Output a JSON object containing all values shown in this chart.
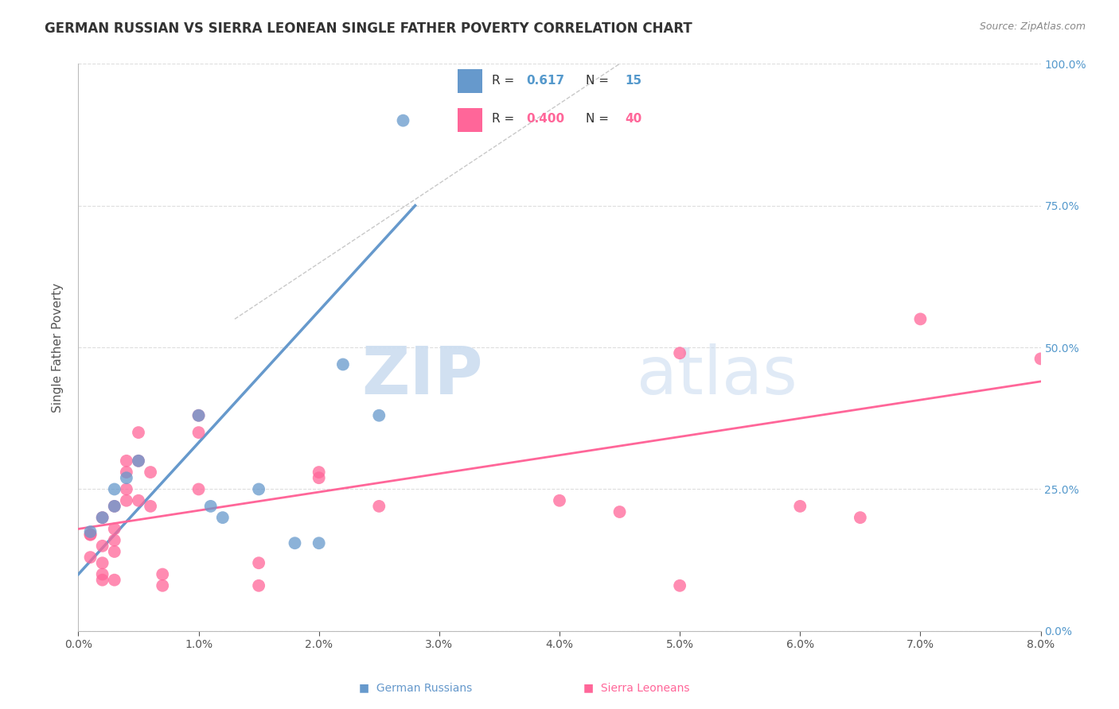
{
  "title": "GERMAN RUSSIAN VS SIERRA LEONEAN SINGLE FATHER POVERTY CORRELATION CHART",
  "source": "Source: ZipAtlas.com",
  "ylabel": "Single Father Poverty",
  "ytick_vals": [
    0.0,
    0.25,
    0.5,
    0.75,
    1.0
  ],
  "ytick_labels": [
    "0.0%",
    "25.0%",
    "50.0%",
    "75.0%",
    "100.0%"
  ],
  "xtick_vals": [
    0.0,
    0.01,
    0.02,
    0.03,
    0.04,
    0.05,
    0.06,
    0.07,
    0.08
  ],
  "xtick_labels": [
    "0.0%",
    "1.0%",
    "2.0%",
    "3.0%",
    "4.0%",
    "5.0%",
    "6.0%",
    "7.0%",
    "8.0%"
  ],
  "legend_r_blue": "R = ",
  "legend_v_blue": "0.617",
  "legend_n_blue_label": "N = ",
  "legend_n_blue": "15",
  "legend_r_pink": "R = ",
  "legend_v_pink": "0.400",
  "legend_n_pink_label": "N = ",
  "legend_n_pink": "40",
  "blue_color": "#6699CC",
  "pink_color": "#FF6699",
  "blue_label": "German Russians",
  "pink_label": "Sierra Leoneans",
  "blue_points": [
    [
      0.001,
      0.175
    ],
    [
      0.002,
      0.2
    ],
    [
      0.003,
      0.22
    ],
    [
      0.003,
      0.25
    ],
    [
      0.004,
      0.27
    ],
    [
      0.005,
      0.3
    ],
    [
      0.01,
      0.38
    ],
    [
      0.011,
      0.22
    ],
    [
      0.012,
      0.2
    ],
    [
      0.015,
      0.25
    ],
    [
      0.018,
      0.155
    ],
    [
      0.02,
      0.155
    ],
    [
      0.022,
      0.47
    ],
    [
      0.025,
      0.38
    ],
    [
      0.027,
      0.9
    ]
  ],
  "pink_points": [
    [
      0.001,
      0.17
    ],
    [
      0.001,
      0.13
    ],
    [
      0.001,
      0.17
    ],
    [
      0.002,
      0.12
    ],
    [
      0.002,
      0.2
    ],
    [
      0.002,
      0.15
    ],
    [
      0.002,
      0.1
    ],
    [
      0.002,
      0.09
    ],
    [
      0.003,
      0.18
    ],
    [
      0.003,
      0.16
    ],
    [
      0.003,
      0.14
    ],
    [
      0.003,
      0.22
    ],
    [
      0.003,
      0.09
    ],
    [
      0.004,
      0.28
    ],
    [
      0.004,
      0.3
    ],
    [
      0.004,
      0.23
    ],
    [
      0.004,
      0.25
    ],
    [
      0.005,
      0.3
    ],
    [
      0.005,
      0.35
    ],
    [
      0.005,
      0.23
    ],
    [
      0.006,
      0.28
    ],
    [
      0.006,
      0.22
    ],
    [
      0.007,
      0.08
    ],
    [
      0.007,
      0.1
    ],
    [
      0.01,
      0.25
    ],
    [
      0.01,
      0.35
    ],
    [
      0.01,
      0.38
    ],
    [
      0.015,
      0.08
    ],
    [
      0.015,
      0.12
    ],
    [
      0.02,
      0.27
    ],
    [
      0.02,
      0.28
    ],
    [
      0.025,
      0.22
    ],
    [
      0.04,
      0.23
    ],
    [
      0.045,
      0.21
    ],
    [
      0.05,
      0.49
    ],
    [
      0.05,
      0.08
    ],
    [
      0.06,
      0.22
    ],
    [
      0.065,
      0.2
    ],
    [
      0.07,
      0.55
    ],
    [
      0.08,
      0.48
    ]
  ],
  "xlim": [
    0.0,
    0.08
  ],
  "ylim": [
    0.0,
    1.0
  ],
  "blue_line_x": [
    0.0,
    0.028
  ],
  "blue_line_y": [
    0.1,
    0.75
  ],
  "pink_line_x": [
    0.0,
    0.08
  ],
  "pink_line_y": [
    0.18,
    0.44
  ],
  "diag_line_x": [
    0.013,
    0.045
  ],
  "diag_line_y": [
    0.55,
    1.0
  ]
}
